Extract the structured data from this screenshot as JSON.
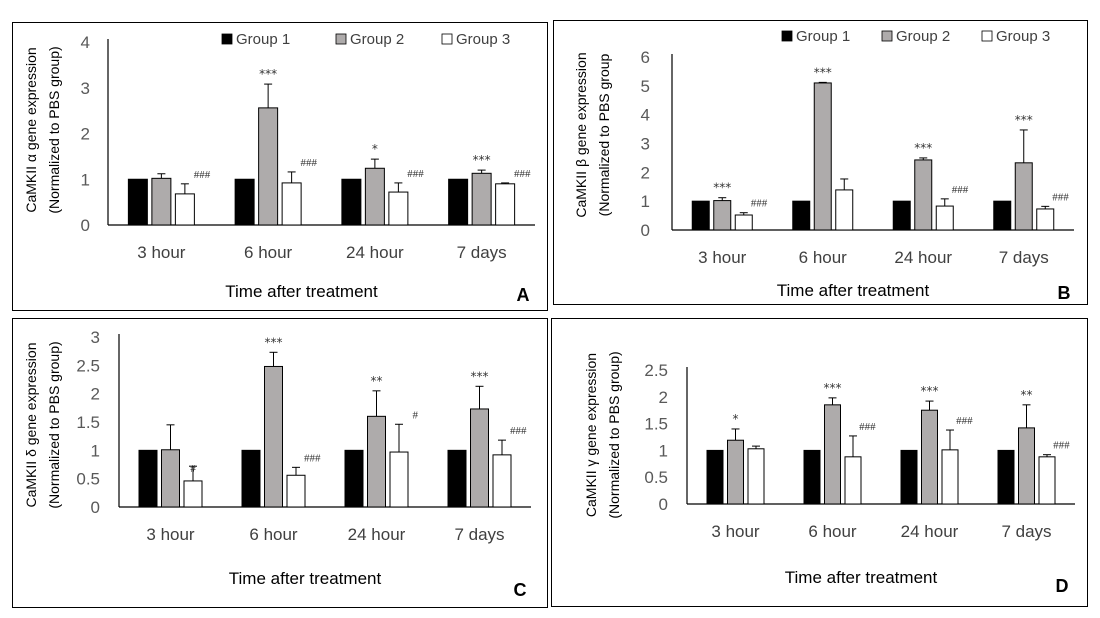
{
  "legend": [
    {
      "name": "Group 1",
      "color": "#000000"
    },
    {
      "name": "Group 2",
      "color": "#aeabab"
    },
    {
      "name": "Group 3",
      "color": "#ffffff"
    }
  ],
  "chart_data": [
    {
      "type": "bar",
      "panel_label": "A",
      "ylabel_line1": "CaMKII α gene expression",
      "ylabel_line2": "(Normalized to PBS group)",
      "xlabel": "Time after treatment",
      "categories": [
        "3 hour",
        "6 hour",
        "24 hour",
        "7 days"
      ],
      "ylim": [
        0,
        4
      ],
      "yticks": [
        "0",
        "1",
        "2",
        "3",
        "4"
      ],
      "legend_position": "top",
      "series": [
        {
          "name": "Group 1",
          "values": [
            1.0,
            1.0,
            1.0,
            1.0
          ],
          "errors": [
            0.0,
            0.0,
            0.0,
            0.0
          ]
        },
        {
          "name": "Group 2",
          "values": [
            1.02,
            2.56,
            1.24,
            1.13
          ],
          "errors": [
            0.1,
            0.52,
            0.2,
            0.07
          ]
        },
        {
          "name": "Group 3",
          "values": [
            0.68,
            0.92,
            0.72,
            0.9
          ],
          "errors": [
            0.22,
            0.24,
            0.2,
            0.02
          ]
        }
      ],
      "annotations": [
        {
          "category": 0,
          "series": 2,
          "text": "###"
        },
        {
          "category": 1,
          "series": 1,
          "text": "***"
        },
        {
          "category": 1,
          "series": 2,
          "text": "###"
        },
        {
          "category": 2,
          "series": 1,
          "text": "*"
        },
        {
          "category": 2,
          "series": 2,
          "text": "###"
        },
        {
          "category": 3,
          "series": 1,
          "text": "***"
        },
        {
          "category": 3,
          "series": 2,
          "text": "###"
        }
      ]
    },
    {
      "type": "bar",
      "panel_label": "B",
      "ylabel_line1": "CaMKII β gene expression",
      "ylabel_line2": "(Normalized to PBS group",
      "xlabel": "Time after treatment",
      "categories": [
        "3 hour",
        "6 hour",
        "24 hour",
        "7 days"
      ],
      "ylim": [
        0,
        6
      ],
      "yticks": [
        "0",
        "1",
        "2",
        "3",
        "4",
        "5",
        "6"
      ],
      "legend_position": "top",
      "series": [
        {
          "name": "Group 1",
          "values": [
            1.0,
            1.0,
            1.0,
            1.0
          ],
          "errors": [
            0.0,
            0.0,
            0.0,
            0.0
          ]
        },
        {
          "name": "Group 2",
          "values": [
            1.02,
            5.1,
            2.43,
            2.33
          ],
          "errors": [
            0.1,
            0.02,
            0.07,
            1.14
          ]
        },
        {
          "name": "Group 3",
          "values": [
            0.52,
            1.39,
            0.83,
            0.73
          ],
          "errors": [
            0.08,
            0.38,
            0.25,
            0.09
          ]
        }
      ],
      "annotations": [
        {
          "category": 0,
          "series": 1,
          "text": "***"
        },
        {
          "category": 0,
          "series": 2,
          "text": "###"
        },
        {
          "category": 1,
          "series": 1,
          "text": "***"
        },
        {
          "category": 2,
          "series": 1,
          "text": "***"
        },
        {
          "category": 2,
          "series": 2,
          "text": "###"
        },
        {
          "category": 3,
          "series": 1,
          "text": "***"
        },
        {
          "category": 3,
          "series": 2,
          "text": "###"
        }
      ]
    },
    {
      "type": "bar",
      "panel_label": "C",
      "ylabel_line1": "CaMKII δ gene expression",
      "ylabel_line2": "(Normalized to PBS group)",
      "xlabel": "Time after treatment",
      "categories": [
        "3 hour",
        "6 hour",
        "24 hour",
        "7 days"
      ],
      "ylim": [
        0,
        3
      ],
      "yticks": [
        "0",
        "0.5",
        "1",
        "1.5",
        "2",
        "2.5",
        "3"
      ],
      "legend_position": "none",
      "series": [
        {
          "name": "Group 1",
          "values": [
            1.0,
            1.0,
            1.0,
            1.0
          ],
          "errors": [
            0.0,
            0.0,
            0.0,
            0.0
          ]
        },
        {
          "name": "Group 2",
          "values": [
            1.01,
            2.48,
            1.6,
            1.73
          ],
          "errors": [
            0.44,
            0.25,
            0.45,
            0.4
          ]
        },
        {
          "name": "Group 3",
          "values": [
            0.46,
            0.56,
            0.97,
            0.92
          ],
          "errors": [
            0.26,
            0.14,
            0.49,
            0.26
          ]
        }
      ],
      "annotations": [
        {
          "category": 0,
          "series": 2,
          "text": "#"
        },
        {
          "category": 1,
          "series": 1,
          "text": "***"
        },
        {
          "category": 1,
          "series": 2,
          "text": "###"
        },
        {
          "category": 2,
          "series": 1,
          "text": "**"
        },
        {
          "category": 2,
          "series": 2,
          "text": "#"
        },
        {
          "category": 3,
          "series": 1,
          "text": "***"
        },
        {
          "category": 3,
          "series": 2,
          "text": "###"
        }
      ]
    },
    {
      "type": "bar",
      "panel_label": "D",
      "ylabel_line1": "CaMKII γ gene expression",
      "ylabel_line2": "(Normalized to PBS group)",
      "xlabel": "Time after treatment",
      "categories": [
        "3 hour",
        "6 hour",
        "24 hour",
        "7 days"
      ],
      "ylim": [
        0,
        2.5
      ],
      "yticks": [
        "0",
        "0.5",
        "1",
        "1.5",
        "2",
        "2.5"
      ],
      "legend_position": "none",
      "series": [
        {
          "name": "Group 1",
          "values": [
            1.0,
            1.0,
            1.0,
            1.0
          ],
          "errors": [
            0.0,
            0.0,
            0.0,
            0.0
          ]
        },
        {
          "name": "Group 2",
          "values": [
            1.19,
            1.85,
            1.75,
            1.42
          ],
          "errors": [
            0.21,
            0.13,
            0.17,
            0.43
          ]
        },
        {
          "name": "Group 3",
          "values": [
            1.03,
            0.88,
            1.01,
            0.88
          ],
          "errors": [
            0.05,
            0.39,
            0.37,
            0.04
          ]
        }
      ],
      "annotations": [
        {
          "category": 0,
          "series": 1,
          "text": "*"
        },
        {
          "category": 1,
          "series": 1,
          "text": "***"
        },
        {
          "category": 1,
          "series": 2,
          "text": "###"
        },
        {
          "category": 2,
          "series": 1,
          "text": "***"
        },
        {
          "category": 2,
          "series": 2,
          "text": "###"
        },
        {
          "category": 3,
          "series": 1,
          "text": "**"
        },
        {
          "category": 3,
          "series": 2,
          "text": "###"
        }
      ]
    }
  ]
}
